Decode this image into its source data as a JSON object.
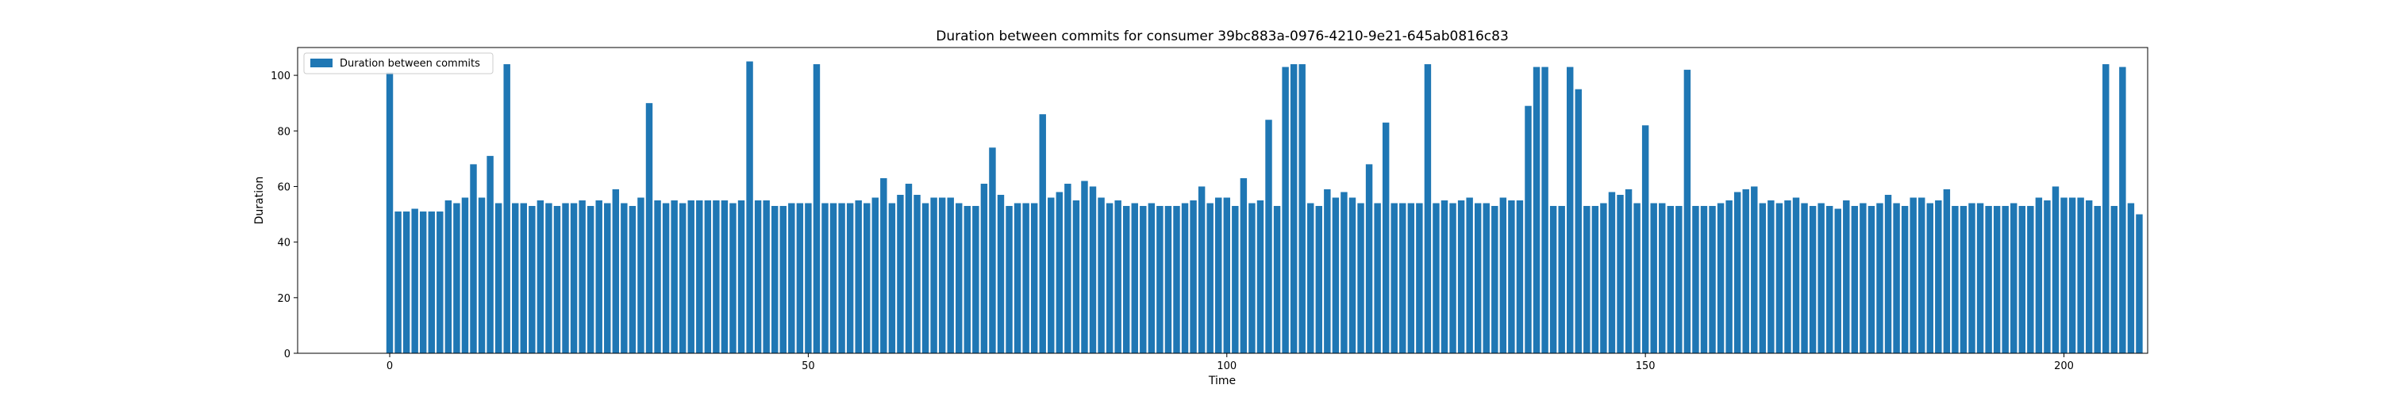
{
  "chart_data": {
    "type": "bar",
    "title": "Duration between commits for consumer 39bc883a-0976-4210-9e21-645ab0816c83",
    "xlabel": "Time",
    "ylabel": "Duration",
    "xlim": [
      -11,
      210
    ],
    "ylim": [
      0,
      110
    ],
    "xticks": [
      0,
      50,
      100,
      150,
      200
    ],
    "yticks": [
      0,
      20,
      40,
      60,
      80,
      100
    ],
    "grid": false,
    "legend_position": "top-left",
    "bar_color": "#1f77b4",
    "series": [
      {
        "name": "Duration between commits",
        "x": [
          0,
          1,
          2,
          3,
          4,
          5,
          6,
          7,
          8,
          9,
          10,
          11,
          12,
          13,
          14,
          15,
          16,
          17,
          18,
          19,
          20,
          21,
          22,
          23,
          24,
          25,
          26,
          27,
          28,
          29,
          30,
          31,
          32,
          33,
          34,
          35,
          36,
          37,
          38,
          39,
          40,
          41,
          42,
          43,
          44,
          45,
          46,
          47,
          48,
          49,
          50,
          51,
          52,
          53,
          54,
          55,
          56,
          57,
          58,
          59,
          60,
          61,
          62,
          63,
          64,
          65,
          66,
          67,
          68,
          69,
          70,
          71,
          72,
          73,
          74,
          75,
          76,
          77,
          78,
          79,
          80,
          81,
          82,
          83,
          84,
          85,
          86,
          87,
          88,
          89,
          90,
          91,
          92,
          93,
          94,
          95,
          96,
          97,
          98,
          99,
          100,
          101,
          102,
          103,
          104,
          105,
          106,
          107,
          108,
          109,
          110,
          111,
          112,
          113,
          114,
          115,
          116,
          117,
          118,
          119,
          120,
          121,
          122,
          123,
          124,
          125,
          126,
          127,
          128,
          129,
          130,
          131,
          132,
          133,
          134,
          135,
          136,
          137,
          138,
          139,
          140,
          141,
          142,
          143,
          144,
          145,
          146,
          147,
          148,
          149,
          150,
          151,
          152,
          153,
          154,
          155,
          156,
          157,
          158,
          159,
          160,
          161,
          162,
          163,
          164,
          165,
          166,
          167,
          168,
          169,
          170,
          171,
          172,
          173,
          174,
          175,
          176,
          177,
          178,
          179,
          180,
          181,
          182,
          183,
          184,
          185,
          186,
          187,
          188,
          189,
          190,
          191,
          192,
          193,
          194,
          195,
          196,
          197,
          198,
          199,
          200,
          201,
          202,
          203,
          204,
          205,
          206,
          207,
          208,
          209
        ],
        "values": [
          101,
          51,
          51,
          52,
          51,
          51,
          51,
          55,
          54,
          56,
          68,
          56,
          71,
          54,
          104,
          54,
          54,
          53,
          55,
          54,
          53,
          54,
          54,
          55,
          53,
          55,
          54,
          59,
          54,
          53,
          56,
          90,
          55,
          54,
          55,
          54,
          55,
          55,
          55,
          55,
          55,
          54,
          55,
          105,
          55,
          55,
          53,
          53,
          54,
          54,
          54,
          104,
          54,
          54,
          54,
          54,
          55,
          54,
          56,
          63,
          54,
          57,
          61,
          57,
          54,
          56,
          56,
          56,
          54,
          53,
          53,
          61,
          74,
          57,
          53,
          54,
          54,
          54,
          86,
          56,
          58,
          61,
          55,
          62,
          60,
          56,
          54,
          55,
          53,
          54,
          53,
          54,
          53,
          53,
          53,
          54,
          55,
          60,
          54,
          56,
          56,
          53,
          63,
          54,
          55,
          84,
          53,
          103,
          104,
          104,
          54,
          53,
          59,
          56,
          58,
          56,
          54,
          68,
          54,
          83,
          54,
          54,
          54,
          54,
          104,
          54,
          55,
          54,
          55,
          56,
          54,
          54,
          53,
          56,
          55,
          55,
          89,
          103,
          103,
          53,
          53,
          103,
          95,
          53,
          53,
          54,
          58,
          57,
          59,
          54,
          82,
          54,
          54,
          53,
          53,
          102,
          53,
          53,
          53,
          54,
          55,
          58,
          59,
          60,
          54,
          55,
          54,
          55,
          56,
          54,
          53,
          54,
          53,
          52,
          55,
          53,
          54,
          53,
          54,
          57,
          54,
          53,
          56,
          56,
          54,
          55,
          59,
          53,
          53,
          54,
          54,
          53,
          53,
          53,
          54,
          53,
          53,
          56,
          55,
          60,
          56,
          56,
          56,
          55,
          53,
          104,
          53,
          103,
          54,
          50
        ]
      }
    ]
  }
}
